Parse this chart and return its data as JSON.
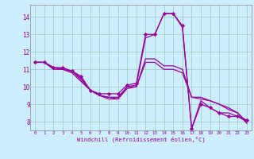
{
  "xlabel": "Windchill (Refroidissement éolien,°C)",
  "ylabel": "",
  "bg_color": "#cceeff",
  "line_color": "#990099",
  "marker": "D",
  "markersize": 2.2,
  "linewidth": 0.9,
  "xlim": [
    -0.5,
    23.5
  ],
  "ylim": [
    7.5,
    14.7
  ],
  "xticks": [
    0,
    1,
    2,
    3,
    4,
    5,
    6,
    7,
    8,
    9,
    10,
    11,
    12,
    13,
    14,
    15,
    16,
    17,
    18,
    19,
    20,
    21,
    22,
    23
  ],
  "yticks": [
    8,
    9,
    10,
    11,
    12,
    13,
    14
  ],
  "grid_color": "#99ccbb",
  "series": [
    {
      "x": [
        0,
        1,
        2,
        3,
        4,
        5,
        6,
        7,
        8,
        9,
        10,
        11,
        12,
        13,
        14,
        15,
        16,
        17,
        18,
        19,
        20,
        21,
        22,
        23
      ],
      "y": [
        11.4,
        11.4,
        11.1,
        11.1,
        10.9,
        10.6,
        9.8,
        9.6,
        9.6,
        9.6,
        10.1,
        10.2,
        13.0,
        13.0,
        14.2,
        14.2,
        13.5,
        7.6,
        9.0,
        8.8,
        8.5,
        8.3,
        8.3,
        8.1
      ],
      "has_marker": true
    },
    {
      "x": [
        0,
        1,
        2,
        3,
        4,
        5,
        6,
        7,
        8,
        9,
        10,
        11,
        12,
        13,
        14,
        15,
        16,
        17,
        18,
        19,
        20,
        21,
        22,
        23
      ],
      "y": [
        11.4,
        11.4,
        11.1,
        11.0,
        10.9,
        10.5,
        9.8,
        9.5,
        9.4,
        9.4,
        10.0,
        10.1,
        12.8,
        13.0,
        14.2,
        14.2,
        13.4,
        7.6,
        9.2,
        8.8,
        8.5,
        8.5,
        8.3,
        8.0
      ],
      "has_marker": false
    },
    {
      "x": [
        0,
        1,
        2,
        3,
        4,
        5,
        6,
        7,
        8,
        9,
        10,
        11,
        12,
        13,
        14,
        15,
        16,
        17,
        18,
        19,
        20,
        21,
        22,
        23
      ],
      "y": [
        11.4,
        11.4,
        11.1,
        11.0,
        10.9,
        10.4,
        9.8,
        9.5,
        9.4,
        9.3,
        10.0,
        10.0,
        11.6,
        11.6,
        11.2,
        11.2,
        11.0,
        9.4,
        9.4,
        9.2,
        9.0,
        8.8,
        8.5,
        8.0
      ],
      "has_marker": false
    },
    {
      "x": [
        0,
        1,
        2,
        3,
        4,
        5,
        6,
        7,
        8,
        9,
        10,
        11,
        12,
        13,
        14,
        15,
        16,
        17,
        18,
        19,
        20,
        21,
        22,
        23
      ],
      "y": [
        11.4,
        11.4,
        11.0,
        11.0,
        10.8,
        10.3,
        9.8,
        9.5,
        9.3,
        9.3,
        9.9,
        10.0,
        11.4,
        11.4,
        11.0,
        11.0,
        10.8,
        9.4,
        9.3,
        9.2,
        9.0,
        8.7,
        8.5,
        7.9
      ],
      "has_marker": false
    }
  ]
}
